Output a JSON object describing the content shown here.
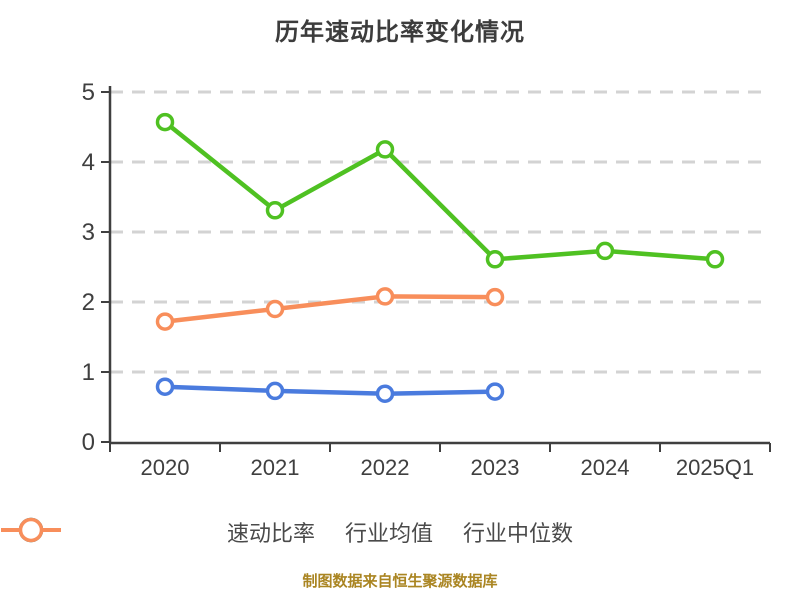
{
  "title": "历年速动比率变化情况",
  "footer": "制图数据来自恒生聚源数据库",
  "colors": {
    "background": "#FFFFFF",
    "title_text": "#3C3C3C",
    "axis": "#3F3F3F",
    "tick_label": "#3F3F3F",
    "grid": "#D3D3D3",
    "legend_text": "#4A4A4A",
    "footer_text": "#AA8522",
    "marker_fill": "#FFFFFF"
  },
  "chart_data": {
    "type": "line",
    "title": "历年速动比率变化情况",
    "categories": [
      "2020",
      "2021",
      "2022",
      "2023",
      "2024",
      "2025Q1"
    ],
    "series": [
      {
        "name": "速动比率",
        "color": "#4FC122",
        "values": [
          4.57,
          3.31,
          4.18,
          2.61,
          2.73,
          2.61
        ]
      },
      {
        "name": "行业均值",
        "color": "#4A7BDE",
        "values": [
          0.79,
          0.73,
          0.69,
          0.72,
          null,
          null
        ]
      },
      {
        "name": "行业中位数",
        "color": "#F88E5B",
        "values": [
          1.72,
          1.9,
          2.08,
          2.07,
          null,
          null
        ]
      }
    ],
    "ylim": [
      0,
      5
    ],
    "yticks": [
      0,
      1,
      2,
      3,
      4,
      5
    ],
    "xlabel": "",
    "ylabel": "",
    "grid": "horizontal-dashed",
    "legend_position": "bottom",
    "source_note": "制图数据来自恒生聚源数据库"
  }
}
